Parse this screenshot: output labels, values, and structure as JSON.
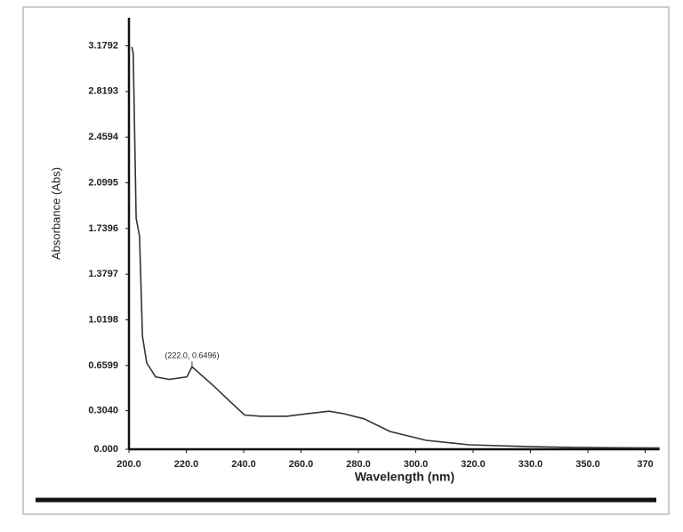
{
  "chart_data": {
    "type": "line",
    "x_label": "Wavelength (nm)",
    "y_label": "Absorbance (Abs)",
    "x": [
      201.0,
      201.5,
      202.5,
      203.7,
      204.7,
      206.2,
      209.3,
      214.0,
      220.2,
      222.0,
      229.5,
      236.0,
      240.3,
      246.0,
      255.0,
      262.0,
      269.8,
      275.0,
      282.0,
      291.0,
      303.7,
      318.6,
      330.0,
      345.0,
      360.0,
      375.0
    ],
    "values": [
      3.17,
      3.12,
      1.82,
      1.68,
      0.89,
      0.68,
      0.57,
      0.55,
      0.57,
      0.6496,
      0.5,
      0.36,
      0.27,
      0.26,
      0.26,
      0.28,
      0.3,
      0.28,
      0.24,
      0.14,
      0.07,
      0.035,
      0.02,
      0.015,
      0.012,
      0.01
    ],
    "color": "#333333",
    "annotations": [
      {
        "text": "(222.0, 0.6496)",
        "x": 222.0,
        "y": 0.6496
      }
    ],
    "xlim": [
      200,
      375
    ],
    "ylim": [
      0,
      3.4
    ],
    "xticks": [
      {
        "value": 200,
        "label": "200.0"
      },
      {
        "value": 220,
        "label": "220.0"
      },
      {
        "value": 240,
        "label": "240.0"
      },
      {
        "value": 260,
        "label": "260.0"
      },
      {
        "value": 280,
        "label": "280.0"
      },
      {
        "value": 300,
        "label": "300.0"
      },
      {
        "value": 320,
        "label": "320.0"
      },
      {
        "value": 330,
        "label": "330.0"
      },
      {
        "value": 350,
        "label": "350.0"
      },
      370
    ],
    "yticks": [
      {
        "value": 0,
        "label": "0.000"
      },
      {
        "value": 0.304,
        "label": "0.3040"
      },
      0.6599,
      1.0198,
      1.3797,
      1.7396,
      2.0995,
      2.4594,
      2.8193,
      3.1792
    ]
  }
}
